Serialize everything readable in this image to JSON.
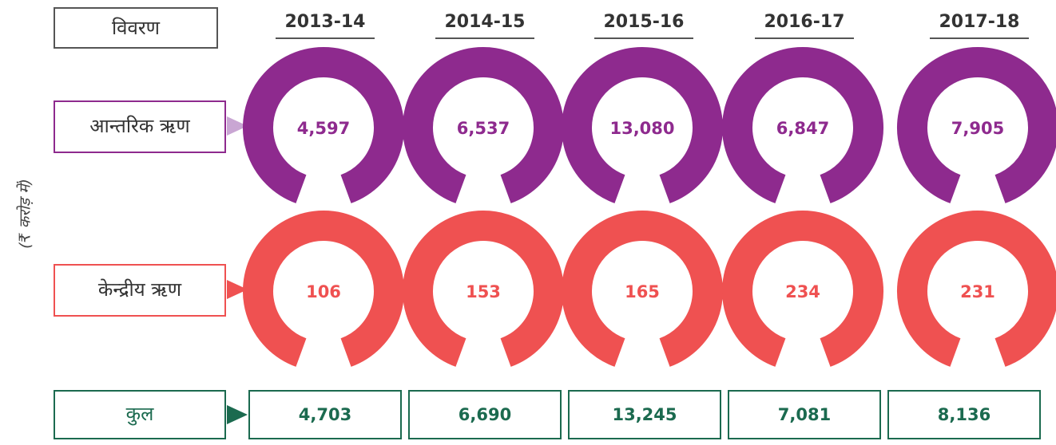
{
  "header": "विवरण",
  "unit": "(₹ करोड़ में)",
  "years": [
    "2013-14",
    "2014-15",
    "2015-16",
    "2016-17",
    "2017-18"
  ],
  "rows": [
    {
      "label": "आन्तरिक ऋण",
      "values": [
        "4,597",
        "6,537",
        "13,080",
        "6,847",
        "7,905"
      ]
    },
    {
      "label": "केन्द्रीय ऋण",
      "values": [
        "106",
        "153",
        "165",
        "234",
        "231"
      ]
    }
  ],
  "total": {
    "label": "कुल",
    "values": [
      "4,703",
      "6,690",
      "13,245",
      "7,081",
      "8,136"
    ]
  }
}
